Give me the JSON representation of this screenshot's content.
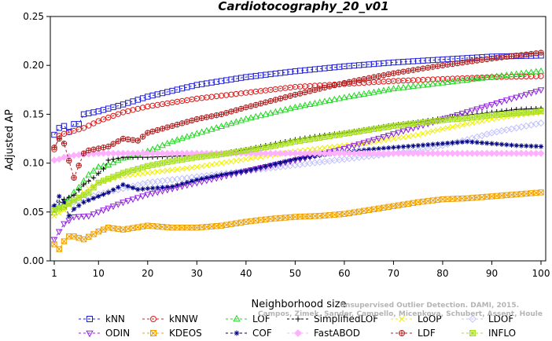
{
  "chart_data": {
    "type": "line",
    "title": "Cardiotocography_20_v01",
    "xlabel": "Neighborhood size",
    "ylabel": "Adjusted AP",
    "xlim": [
      1,
      100
    ],
    "ylim": [
      0,
      0.25
    ],
    "x_ticks": [
      1,
      10,
      20,
      30,
      40,
      50,
      60,
      70,
      80,
      90,
      100
    ],
    "y_ticks": [
      0.0,
      0.05,
      0.1,
      0.15,
      0.2,
      0.25
    ],
    "y_tick_labels": [
      "0.00",
      "0.05",
      "0.10",
      "0.15",
      "0.20",
      "0.25"
    ],
    "grid": false,
    "legend_position": "bottom",
    "series": [
      {
        "name": "kNN",
        "color": "#1c1cd8",
        "marker": "square",
        "points": [
          [
            1,
            0.129
          ],
          [
            2,
            0.136
          ],
          [
            3,
            0.138
          ],
          [
            4,
            0.132
          ],
          [
            5,
            0.14
          ],
          [
            6,
            0.14
          ],
          [
            7,
            0.15
          ],
          [
            8,
            0.151
          ],
          [
            10,
            0.153
          ],
          [
            15,
            0.16
          ],
          [
            20,
            0.168
          ],
          [
            25,
            0.174
          ],
          [
            30,
            0.18
          ],
          [
            40,
            0.188
          ],
          [
            50,
            0.194
          ],
          [
            60,
            0.199
          ],
          [
            70,
            0.203
          ],
          [
            80,
            0.206
          ],
          [
            90,
            0.209
          ],
          [
            100,
            0.21
          ]
        ]
      },
      {
        "name": "kNNW",
        "color": "#e01818",
        "marker": "circle",
        "points": [
          [
            1,
            0.114
          ],
          [
            2,
            0.128
          ],
          [
            3,
            0.13
          ],
          [
            5,
            0.133
          ],
          [
            7,
            0.136
          ],
          [
            10,
            0.143
          ],
          [
            15,
            0.152
          ],
          [
            20,
            0.158
          ],
          [
            25,
            0.162
          ],
          [
            30,
            0.166
          ],
          [
            40,
            0.172
          ],
          [
            50,
            0.178
          ],
          [
            60,
            0.181
          ],
          [
            70,
            0.184
          ],
          [
            80,
            0.186
          ],
          [
            90,
            0.188
          ],
          [
            100,
            0.189
          ]
        ]
      },
      {
        "name": "LOF",
        "color": "#22d822",
        "marker": "triangle-up",
        "points": [
          [
            1,
            0.049
          ],
          [
            2,
            0.055
          ],
          [
            3,
            0.06
          ],
          [
            4,
            0.064
          ],
          [
            5,
            0.07
          ],
          [
            6,
            0.075
          ],
          [
            8,
            0.088
          ],
          [
            10,
            0.096
          ],
          [
            12,
            0.098
          ],
          [
            15,
            0.105
          ],
          [
            20,
            0.112
          ],
          [
            25,
            0.122
          ],
          [
            30,
            0.13
          ],
          [
            40,
            0.145
          ],
          [
            50,
            0.157
          ],
          [
            60,
            0.167
          ],
          [
            70,
            0.176
          ],
          [
            80,
            0.182
          ],
          [
            90,
            0.188
          ],
          [
            100,
            0.194
          ]
        ]
      },
      {
        "name": "SimplifiedLOF",
        "color": "#000000",
        "marker": "plus",
        "points": [
          [
            1,
            0.057
          ],
          [
            3,
            0.063
          ],
          [
            5,
            0.067
          ],
          [
            7,
            0.078
          ],
          [
            9,
            0.085
          ],
          [
            11,
            0.094
          ],
          [
            12,
            0.103
          ],
          [
            15,
            0.106
          ],
          [
            20,
            0.106
          ],
          [
            25,
            0.107
          ],
          [
            30,
            0.108
          ],
          [
            35,
            0.11
          ],
          [
            40,
            0.114
          ],
          [
            45,
            0.119
          ],
          [
            50,
            0.124
          ],
          [
            55,
            0.128
          ],
          [
            60,
            0.131
          ],
          [
            65,
            0.135
          ],
          [
            70,
            0.139
          ],
          [
            75,
            0.142
          ],
          [
            80,
            0.146
          ],
          [
            85,
            0.149
          ],
          [
            90,
            0.152
          ],
          [
            95,
            0.155
          ],
          [
            100,
            0.156
          ]
        ]
      },
      {
        "name": "LoOP",
        "color": "#f0f000",
        "marker": "x",
        "points": [
          [
            1,
            0.046
          ],
          [
            3,
            0.052
          ],
          [
            5,
            0.062
          ],
          [
            8,
            0.074
          ],
          [
            10,
            0.08
          ],
          [
            15,
            0.087
          ],
          [
            20,
            0.09
          ],
          [
            25,
            0.093
          ],
          [
            30,
            0.096
          ],
          [
            35,
            0.1
          ],
          [
            40,
            0.104
          ],
          [
            45,
            0.108
          ],
          [
            50,
            0.112
          ],
          [
            55,
            0.115
          ],
          [
            60,
            0.118
          ],
          [
            65,
            0.121
          ],
          [
            70,
            0.125
          ],
          [
            75,
            0.129
          ],
          [
            80,
            0.135
          ],
          [
            85,
            0.14
          ],
          [
            90,
            0.145
          ],
          [
            95,
            0.149
          ],
          [
            100,
            0.152
          ]
        ]
      },
      {
        "name": "LDOF",
        "color": "#c0c0ff",
        "marker": "diamond",
        "points": [
          [
            1,
            0.056
          ],
          [
            5,
            0.06
          ],
          [
            10,
            0.068
          ],
          [
            15,
            0.074
          ],
          [
            20,
            0.08
          ],
          [
            25,
            0.083
          ],
          [
            30,
            0.086
          ],
          [
            35,
            0.089
          ],
          [
            40,
            0.092
          ],
          [
            45,
            0.095
          ],
          [
            50,
            0.098
          ],
          [
            55,
            0.101
          ],
          [
            60,
            0.104
          ],
          [
            65,
            0.107
          ],
          [
            70,
            0.11
          ],
          [
            75,
            0.113
          ],
          [
            80,
            0.118
          ],
          [
            85,
            0.124
          ],
          [
            90,
            0.131
          ],
          [
            95,
            0.136
          ],
          [
            100,
            0.141
          ]
        ]
      },
      {
        "name": "ODIN",
        "color": "#9020e0",
        "marker": "triangle-down",
        "points": [
          [
            1,
            0.022
          ],
          [
            2,
            0.03
          ],
          [
            3,
            0.038
          ],
          [
            5,
            0.045
          ],
          [
            8,
            0.046
          ],
          [
            10,
            0.05
          ],
          [
            15,
            0.06
          ],
          [
            20,
            0.068
          ],
          [
            25,
            0.074
          ],
          [
            30,
            0.08
          ],
          [
            40,
            0.092
          ],
          [
            50,
            0.103
          ],
          [
            60,
            0.115
          ],
          [
            70,
            0.13
          ],
          [
            80,
            0.145
          ],
          [
            90,
            0.16
          ],
          [
            100,
            0.175
          ]
        ]
      },
      {
        "name": "KDEOS",
        "color": "#f0a000",
        "marker": "box-x",
        "points": [
          [
            1,
            0.017
          ],
          [
            2,
            0.012
          ],
          [
            3,
            0.02
          ],
          [
            4,
            0.025
          ],
          [
            5,
            0.025
          ],
          [
            7,
            0.022
          ],
          [
            10,
            0.03
          ],
          [
            12,
            0.034
          ],
          [
            15,
            0.032
          ],
          [
            20,
            0.036
          ],
          [
            25,
            0.034
          ],
          [
            30,
            0.034
          ],
          [
            35,
            0.036
          ],
          [
            40,
            0.04
          ],
          [
            45,
            0.043
          ],
          [
            50,
            0.045
          ],
          [
            55,
            0.046
          ],
          [
            60,
            0.048
          ],
          [
            65,
            0.052
          ],
          [
            70,
            0.056
          ],
          [
            75,
            0.06
          ],
          [
            80,
            0.063
          ],
          [
            85,
            0.064
          ],
          [
            90,
            0.066
          ],
          [
            95,
            0.068
          ],
          [
            100,
            0.07
          ]
        ]
      },
      {
        "name": "COF",
        "color": "#000080",
        "marker": "asterisk",
        "points": [
          [
            1,
            0.056
          ],
          [
            2,
            0.066
          ],
          [
            3,
            0.06
          ],
          [
            4,
            0.046
          ],
          [
            5,
            0.053
          ],
          [
            7,
            0.06
          ],
          [
            10,
            0.066
          ],
          [
            12,
            0.07
          ],
          [
            15,
            0.078
          ],
          [
            18,
            0.073
          ],
          [
            20,
            0.074
          ],
          [
            25,
            0.076
          ],
          [
            30,
            0.083
          ],
          [
            35,
            0.088
          ],
          [
            40,
            0.092
          ],
          [
            45,
            0.098
          ],
          [
            50,
            0.104
          ],
          [
            55,
            0.108
          ],
          [
            60,
            0.111
          ],
          [
            65,
            0.114
          ],
          [
            70,
            0.116
          ],
          [
            75,
            0.118
          ],
          [
            80,
            0.12
          ],
          [
            85,
            0.122
          ],
          [
            90,
            0.12
          ],
          [
            95,
            0.118
          ],
          [
            100,
            0.117
          ]
        ]
      },
      {
        "name": "FastABOD",
        "color": "#ffb0ff",
        "marker": "diamond-filled",
        "points": [
          [
            1,
            0.103
          ],
          [
            2,
            0.104
          ],
          [
            3,
            0.106
          ],
          [
            5,
            0.108
          ],
          [
            7,
            0.109
          ],
          [
            10,
            0.11
          ],
          [
            15,
            0.11
          ],
          [
            20,
            0.11
          ],
          [
            25,
            0.11
          ],
          [
            30,
            0.11
          ],
          [
            40,
            0.11
          ],
          [
            50,
            0.11
          ],
          [
            60,
            0.11
          ],
          [
            70,
            0.11
          ],
          [
            80,
            0.11
          ],
          [
            90,
            0.11
          ],
          [
            100,
            0.11
          ]
        ]
      },
      {
        "name": "LDF",
        "color": "#b02020",
        "marker": "circle-plus",
        "points": [
          [
            1,
            0.116
          ],
          [
            2,
            0.125
          ],
          [
            3,
            0.12
          ],
          [
            5,
            0.085
          ],
          [
            7,
            0.11
          ],
          [
            8,
            0.113
          ],
          [
            10,
            0.115
          ],
          [
            12,
            0.117
          ],
          [
            15,
            0.125
          ],
          [
            18,
            0.123
          ],
          [
            20,
            0.131
          ],
          [
            25,
            0.138
          ],
          [
            30,
            0.145
          ],
          [
            35,
            0.15
          ],
          [
            40,
            0.157
          ],
          [
            50,
            0.17
          ],
          [
            60,
            0.182
          ],
          [
            70,
            0.192
          ],
          [
            80,
            0.2
          ],
          [
            90,
            0.207
          ],
          [
            100,
            0.213
          ]
        ]
      },
      {
        "name": "INFLO",
        "color": "#a8e020",
        "marker": "box-asterisk",
        "points": [
          [
            1,
            0.052
          ],
          [
            3,
            0.055
          ],
          [
            5,
            0.062
          ],
          [
            8,
            0.07
          ],
          [
            10,
            0.08
          ],
          [
            15,
            0.09
          ],
          [
            20,
            0.097
          ],
          [
            25,
            0.102
          ],
          [
            30,
            0.106
          ],
          [
            35,
            0.109
          ],
          [
            40,
            0.113
          ],
          [
            45,
            0.117
          ],
          [
            50,
            0.122
          ],
          [
            55,
            0.126
          ],
          [
            60,
            0.13
          ],
          [
            65,
            0.134
          ],
          [
            70,
            0.138
          ],
          [
            75,
            0.141
          ],
          [
            80,
            0.144
          ],
          [
            85,
            0.146
          ],
          [
            90,
            0.149
          ],
          [
            95,
            0.151
          ],
          [
            100,
            0.153
          ]
        ]
      }
    ]
  },
  "watermark": {
    "line1": "Unsupervised Outlier Detection. DAMI, 2015.",
    "line2": "Campos, Zimek, Sander, Campello, Micenkova, Schubert, Assent, Houle"
  }
}
